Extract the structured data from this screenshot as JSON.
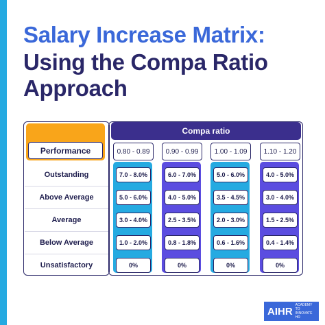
{
  "title": [
    "Salary Increase Matrix:",
    "Using the Compa Ratio",
    "Approach"
  ],
  "table": {
    "row_header": "Performance",
    "column_group": "Compa ratio",
    "columns": [
      "0.80 - 0.89",
      "0.90 - 0.99",
      "1.00 - 1.09",
      "1.10 - 1.20"
    ],
    "rows": [
      {
        "label": "Outstanding",
        "cells": [
          "7.0 - 8.0%",
          "6.0 - 7.0%",
          "5.0 - 6.0%",
          "4.0 - 5.0%"
        ]
      },
      {
        "label": "Above Average",
        "cells": [
          "5.0 - 6.0%",
          "4.0 - 5.0%",
          "3.5 - 4.5%",
          "3.0 - 4.0%"
        ]
      },
      {
        "label": "Average",
        "cells": [
          "3.0 - 4.0%",
          "2.5 - 3.5%",
          "2.0 - 3.0%",
          "1.5 - 2.5%"
        ]
      },
      {
        "label": "Below Average",
        "cells": [
          "1.0 - 2.0%",
          "0.8 - 1.8%",
          "0.6 - 1.6%",
          "0.4 - 1.4%"
        ]
      },
      {
        "label": "Unsatisfactory",
        "cells": [
          "0%",
          "0%",
          "0%",
          "0%"
        ]
      }
    ]
  },
  "logo": {
    "name": "AIHR",
    "tagline": "ACADEMY TO INNOVATE HR"
  }
}
